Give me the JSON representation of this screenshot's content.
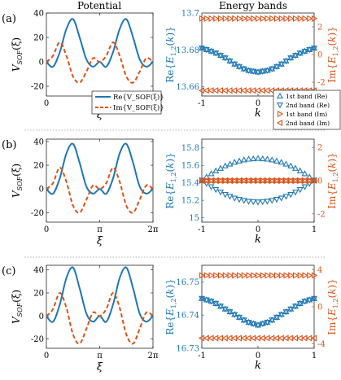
{
  "headers": {
    "left": "Potential",
    "right": "Energy bands"
  },
  "colors": {
    "re": "#1f77b4",
    "im": "#d95319",
    "axis": "#262626",
    "divider": "#9a9a9a"
  },
  "legend_left": {
    "re": "Re{V_SOF(ξ)}",
    "im": "Im{V_SOF(ξ)}"
  },
  "legend_right": [
    "1st band (Re)",
    "2nd band (Re)",
    "1st band (Im)",
    "2nd band (Im)"
  ],
  "chart_data": [
    {
      "panel": "(a)",
      "side": "potential",
      "type": "line",
      "xlabel": "ξ",
      "ylabel": "V_SOF(ξ)",
      "xlim": [
        0,
        6.2832
      ],
      "ylim": [
        -28,
        40
      ],
      "xticks": [
        "0",
        "π",
        "2π"
      ],
      "yticks": [
        -20,
        0,
        20,
        40
      ],
      "series": [
        {
          "name": "Re{V_SOF(ξ)}",
          "x": [
            0,
            0.39,
            0.79,
            1.18,
            1.57,
            1.96,
            2.36,
            2.75,
            3.14,
            3.53,
            3.93,
            4.32,
            4.71,
            5.11,
            5.5,
            5.89,
            6.28
          ],
          "values": [
            0,
            -4,
            8,
            27,
            35,
            20,
            2,
            -4,
            0,
            -4,
            8,
            27,
            35,
            20,
            2,
            -4,
            0
          ]
        },
        {
          "name": "Im{V_SOF(ξ)}",
          "x": [
            0,
            0.39,
            0.79,
            1.18,
            1.57,
            1.96,
            2.36,
            2.75,
            3.14,
            3.53,
            3.93,
            4.32,
            4.71,
            5.11,
            5.5,
            5.89,
            6.28
          ],
          "values": [
            0,
            5,
            16,
            5,
            -12,
            -17,
            -8,
            3,
            0,
            5,
            16,
            5,
            -12,
            -17,
            -8,
            3,
            0
          ]
        }
      ]
    },
    {
      "panel": "(a)",
      "side": "bands",
      "type": "scatter",
      "xlabel": "k",
      "ylabel_left": "Re{E_1,2(k)}",
      "ylabel_right": "Im{E_1,2(k)}",
      "xlim": [
        -1,
        1
      ],
      "ylim_left": [
        13.655,
        13.7
      ],
      "ylim_right": [
        -3,
        3
      ],
      "xticks": [
        -1,
        0,
        1
      ],
      "yticks_left": [
        13.66,
        13.68,
        13.7
      ],
      "yticks_right": [
        -2,
        0,
        2
      ],
      "series": [
        {
          "name": "1st band (Re)",
          "axis": "left",
          "k": [
            -1,
            -0.8,
            -0.6,
            -0.4,
            -0.2,
            0,
            0.2,
            0.4,
            0.6,
            0.8,
            1
          ],
          "values": [
            13.681,
            13.679,
            13.676,
            13.672,
            13.669,
            13.668,
            13.669,
            13.672,
            13.676,
            13.679,
            13.681
          ]
        },
        {
          "name": "2nd band (Re)",
          "axis": "left",
          "k": [
            -1,
            -0.8,
            -0.6,
            -0.4,
            -0.2,
            0,
            0.2,
            0.4,
            0.6,
            0.8,
            1
          ],
          "values": [
            13.681,
            13.679,
            13.676,
            13.672,
            13.669,
            13.668,
            13.669,
            13.672,
            13.676,
            13.679,
            13.681
          ]
        },
        {
          "name": "1st band (Im)",
          "axis": "right",
          "k": [
            -1,
            -0.8,
            -0.6,
            -0.4,
            -0.2,
            0,
            0.2,
            0.4,
            0.6,
            0.8,
            1
          ],
          "values": [
            2.6,
            2.6,
            2.6,
            2.6,
            2.6,
            2.6,
            2.6,
            2.6,
            2.6,
            2.6,
            2.6
          ]
        },
        {
          "name": "2nd band (Im)",
          "axis": "right",
          "k": [
            -1,
            -0.8,
            -0.6,
            -0.4,
            -0.2,
            0,
            0.2,
            0.4,
            0.6,
            0.8,
            1
          ],
          "values": [
            -2.6,
            -2.6,
            -2.6,
            -2.6,
            -2.6,
            -2.6,
            -2.6,
            -2.6,
            -2.6,
            -2.6,
            -2.6
          ]
        }
      ]
    },
    {
      "panel": "(b)",
      "side": "potential",
      "type": "line",
      "xlabel": "ξ",
      "ylabel": "V_SOF(ξ)",
      "xlim": [
        0,
        6.2832
      ],
      "ylim": [
        -28,
        42
      ],
      "xticks": [
        "0",
        "π",
        "2π"
      ],
      "yticks": [
        -20,
        0,
        20,
        40
      ],
      "series": [
        {
          "name": "Re{V_SOF(ξ)}",
          "x": [
            0,
            0.39,
            0.79,
            1.18,
            1.57,
            1.96,
            2.36,
            2.75,
            3.14,
            3.53,
            3.93,
            4.32,
            4.71,
            5.11,
            5.5,
            5.89,
            6.28
          ],
          "values": [
            0,
            -4,
            9,
            30,
            38,
            22,
            2,
            -4,
            0,
            -4,
            9,
            30,
            38,
            22,
            2,
            -4,
            0
          ]
        },
        {
          "name": "Im{V_SOF(ξ)}",
          "x": [
            0,
            0.39,
            0.79,
            1.18,
            1.57,
            1.96,
            2.36,
            2.75,
            3.14,
            3.53,
            3.93,
            4.32,
            4.71,
            5.11,
            5.5,
            5.89,
            6.28
          ],
          "values": [
            0,
            5,
            18,
            6,
            -14,
            -20,
            -9,
            3,
            0,
            5,
            18,
            6,
            -14,
            -20,
            -9,
            3,
            0
          ]
        }
      ]
    },
    {
      "panel": "(b)",
      "side": "bands",
      "type": "scatter",
      "xlabel": "k",
      "ylabel_left": "Re{E_1,2(k)}",
      "ylabel_right": "Im{E_1,2(k)}",
      "xlim": [
        -1,
        1
      ],
      "ylim_left": [
        14.95,
        15.9
      ],
      "ylim_right": [
        -2.5,
        2.5
      ],
      "xticks": [
        -1,
        0,
        1
      ],
      "yticks_left": [
        15,
        15.2,
        15.4,
        15.6,
        15.8
      ],
      "yticks_right": [
        -2,
        0,
        2
      ],
      "series": [
        {
          "name": "1st band (Re)",
          "axis": "left",
          "k": [
            -1,
            -0.8,
            -0.6,
            -0.4,
            -0.2,
            0,
            0.2,
            0.4,
            0.6,
            0.8,
            1
          ],
          "values": [
            15.43,
            15.52,
            15.59,
            15.64,
            15.67,
            15.68,
            15.67,
            15.64,
            15.59,
            15.52,
            15.43
          ]
        },
        {
          "name": "2nd band (Re)",
          "axis": "left",
          "k": [
            -1,
            -0.8,
            -0.6,
            -0.4,
            -0.2,
            0,
            0.2,
            0.4,
            0.6,
            0.8,
            1
          ],
          "values": [
            15.43,
            15.34,
            15.27,
            15.22,
            15.19,
            15.18,
            15.19,
            15.22,
            15.27,
            15.34,
            15.43
          ]
        },
        {
          "name": "1st band (Im)",
          "axis": "right",
          "k": [
            -1,
            -0.8,
            -0.6,
            -0.4,
            -0.2,
            0,
            0.2,
            0.4,
            0.6,
            0.8,
            1
          ],
          "values": [
            0,
            0,
            0,
            0,
            0,
            0,
            0,
            0,
            0,
            0,
            0
          ]
        },
        {
          "name": "2nd band (Im)",
          "axis": "right",
          "k": [
            -1,
            -0.8,
            -0.6,
            -0.4,
            -0.2,
            0,
            0.2,
            0.4,
            0.6,
            0.8,
            1
          ],
          "values": [
            0,
            0,
            0,
            0,
            0,
            0,
            0,
            0,
            0,
            0,
            0
          ]
        }
      ]
    },
    {
      "panel": "(c)",
      "side": "potential",
      "type": "line",
      "xlabel": "ξ",
      "ylabel": "V_SOF(ξ)",
      "xlim": [
        0,
        6.2832
      ],
      "ylim": [
        -28,
        44
      ],
      "xticks": [
        "0",
        "π",
        "2π"
      ],
      "yticks": [
        -20,
        0,
        20,
        40
      ],
      "series": [
        {
          "name": "Re{V_SOF(ξ)}",
          "x": [
            0,
            0.39,
            0.79,
            1.18,
            1.57,
            1.96,
            2.36,
            2.75,
            3.14,
            3.53,
            3.93,
            4.32,
            4.71,
            5.11,
            5.5,
            5.89,
            6.28
          ],
          "values": [
            0,
            -5,
            10,
            33,
            42,
            24,
            2,
            -5,
            0,
            -5,
            10,
            33,
            42,
            24,
            2,
            -5,
            0
          ]
        },
        {
          "name": "Im{V_SOF(ξ)}",
          "x": [
            0,
            0.39,
            0.79,
            1.18,
            1.57,
            1.96,
            2.36,
            2.75,
            3.14,
            3.53,
            3.93,
            4.32,
            4.71,
            5.11,
            5.5,
            5.89,
            6.28
          ],
          "values": [
            0,
            6,
            20,
            7,
            -16,
            -24,
            -11,
            3,
            0,
            6,
            20,
            7,
            -16,
            -24,
            -11,
            3,
            0
          ]
        }
      ]
    },
    {
      "panel": "(c)",
      "side": "bands",
      "type": "scatter",
      "xlabel": "k",
      "ylabel_left": "Re{E_1,2(k)}",
      "ylabel_right": "Im{E_1,2(k)}",
      "xlim": [
        -1,
        1
      ],
      "ylim_left": [
        16.73,
        16.755
      ],
      "ylim_right": [
        -4.5,
        4.5
      ],
      "xticks": [
        -1,
        0,
        1
      ],
      "yticks_left": [
        16.73,
        16.74,
        16.75
      ],
      "yticks_right": [
        -4,
        0,
        4
      ],
      "series": [
        {
          "name": "1st band (Re)",
          "axis": "left",
          "k": [
            -1,
            -0.8,
            -0.6,
            -0.4,
            -0.2,
            0,
            0.2,
            0.4,
            0.6,
            0.8,
            1
          ],
          "values": [
            16.745,
            16.744,
            16.742,
            16.74,
            16.738,
            16.737,
            16.738,
            16.74,
            16.742,
            16.744,
            16.745
          ]
        },
        {
          "name": "2nd band (Re)",
          "axis": "left",
          "k": [
            -1,
            -0.8,
            -0.6,
            -0.4,
            -0.2,
            0,
            0.2,
            0.4,
            0.6,
            0.8,
            1
          ],
          "values": [
            16.745,
            16.744,
            16.742,
            16.74,
            16.738,
            16.737,
            16.738,
            16.74,
            16.742,
            16.744,
            16.745
          ]
        },
        {
          "name": "1st band (Im)",
          "axis": "right",
          "k": [
            -1,
            -0.8,
            -0.6,
            -0.4,
            -0.2,
            0,
            0.2,
            0.4,
            0.6,
            0.8,
            1
          ],
          "values": [
            3.4,
            3.4,
            3.4,
            3.4,
            3.4,
            3.4,
            3.4,
            3.4,
            3.4,
            3.4,
            3.4
          ]
        },
        {
          "name": "2nd band (Im)",
          "axis": "right",
          "k": [
            -1,
            -0.8,
            -0.6,
            -0.4,
            -0.2,
            0,
            0.2,
            0.4,
            0.6,
            0.8,
            1
          ],
          "values": [
            -3.4,
            -3.4,
            -3.4,
            -3.4,
            -3.4,
            -3.4,
            -3.4,
            -3.4,
            -3.4,
            -3.4,
            -3.4
          ]
        }
      ]
    }
  ]
}
